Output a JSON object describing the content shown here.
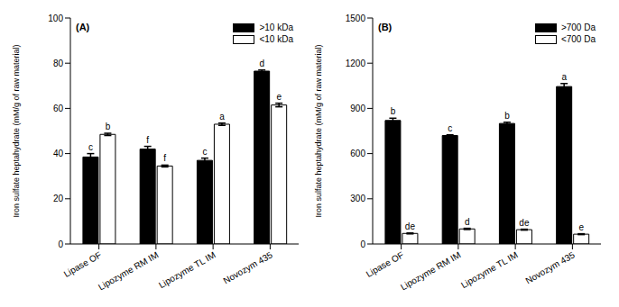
{
  "chart_data": [
    {
      "type": "bar",
      "title": "(A)",
      "y_label": "Iron sulfate heptahydrate (mM/g of  raw material)",
      "categories": [
        "Lipase OF",
        "Lipozyme RM IM",
        "Lipozyme TL IM",
        "Novozym 435"
      ],
      "series": [
        {
          "name": ">10 kDa",
          "color": "#000000",
          "values": [
            38.5,
            42,
            37,
            76.5
          ],
          "errors": [
            1.5,
            1.2,
            1,
            0.5
          ],
          "letters": [
            "c",
            "f",
            "c",
            "d"
          ]
        },
        {
          "name": "<10 kDa",
          "color": "#ffffff",
          "values": [
            48.5,
            34.5,
            53,
            61.5
          ],
          "errors": [
            0.5,
            0.4,
            0.5,
            0.8
          ],
          "letters": [
            "b",
            "f",
            "a",
            "e"
          ]
        }
      ],
      "ylim": [
        0,
        100
      ],
      "yticks": [
        0,
        20,
        40,
        60,
        80,
        100
      ],
      "legend": "upper right"
    },
    {
      "type": "bar",
      "title": "(B)",
      "y_label": "Iron sulfate heptahydrate (mM/g of  raw material)",
      "categories": [
        "Lipase OF",
        "Lipozyme RM IM",
        "Lipozyme TL IM",
        "Novozym 435"
      ],
      "series": [
        {
          "name": ">700 Da",
          "color": "#000000",
          "values": [
            820,
            720,
            800,
            1045
          ],
          "errors": [
            15,
            5,
            8,
            20
          ],
          "letters": [
            "b",
            "c",
            "b",
            "a"
          ]
        },
        {
          "name": "<700 Da",
          "color": "#ffffff",
          "values": [
            70,
            100,
            95,
            65
          ],
          "errors": [
            3,
            4,
            3,
            3
          ],
          "letters": [
            "de",
            "d",
            "de",
            "e"
          ]
        }
      ],
      "ylim": [
        0,
        1500
      ],
      "yticks": [
        0,
        300,
        600,
        900,
        1200,
        1500
      ],
      "legend": "upper right"
    }
  ]
}
